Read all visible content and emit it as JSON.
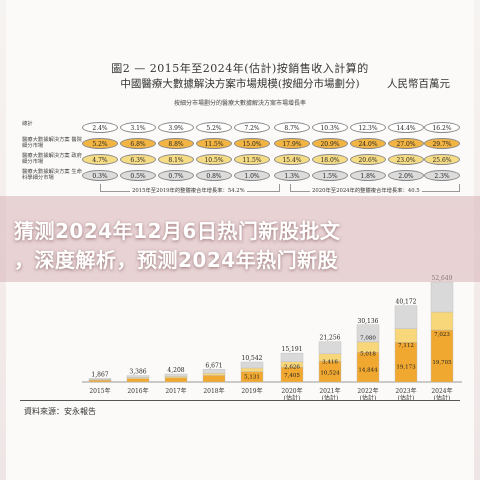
{
  "figure": {
    "title": "圖2 — 2015年至2024年(估計)按銷售收入計算的",
    "subtitle": "中國醫療大數據解決方案市場規模(按細分市場劃分)",
    "unit": "人民幣百萬元",
    "growth_header": "按細分市場劃分的醫療大數據解決方案市場增長率",
    "source": "資料來源：安永報告"
  },
  "growth_table": {
    "rows": [
      {
        "label": "總計",
        "values": [
          "2.4%",
          "3.1%",
          "3.9%",
          "5.2%",
          "7.2%",
          "8.7%",
          "10.3%",
          "12.3%",
          "14.4%",
          "16.2%"
        ]
      },
      {
        "label": "醫療大數據解決方案 醫院細分市場",
        "values": [
          "5.2%",
          "6.8%",
          "8.8%",
          "11.5%",
          "15.0%",
          "17.9%",
          "20.9%",
          "24.0%",
          "27.0%",
          "29.7%"
        ]
      },
      {
        "label": "醫療大數據解決方案 政府細分市場",
        "values": [
          "4.7%",
          "6.3%",
          "8.1%",
          "10.5%",
          "11.5%",
          "15.4%",
          "18.0%",
          "20.6%",
          "23.0%",
          "25.6%"
        ]
      },
      {
        "label": "醫療大數據解決方案 生命科學細分市場",
        "values": [
          "0.3%",
          "0.5%",
          "0.7%",
          "0.8%",
          "1.0%",
          "1.3%",
          "1.5%",
          "1.8%",
          "2.0%",
          "2.3%"
        ]
      }
    ],
    "bracket_left": "2015年至2019年的整體複合年增長率：54.2%",
    "bracket_right": "2020年至2024年的整體複合年增長率：40.5"
  },
  "headline": {
    "line1": "猜测2024年12月6日热门新股批文",
    "line2": "，深度解析，预测2024年热门新股"
  },
  "chart_data": {
    "type": "bar",
    "stacked": true,
    "categories": [
      "2015年",
      "2016年",
      "2017年",
      "2018年",
      "2019年",
      "2020年\n(估計)",
      "2021年\n(估計)",
      "2022年\n(估計)",
      "2023年\n(估計)",
      "2024年\n(估計)"
    ],
    "totals": [
      "1,867",
      "3,386",
      "4,208",
      "6,671",
      "10,542",
      "15,191",
      "21,256",
      "30,136",
      "40,172",
      "52,649"
    ],
    "segments_visible": {
      "2019": [
        "5,131"
      ],
      "2020": [
        "7,405",
        "2,626"
      ],
      "2021": [
        "10,524",
        "3,416"
      ],
      "2022": [
        "14,844",
        "5,018",
        "7,080"
      ],
      "2023": [
        "19,173",
        "7,112"
      ],
      "2024": [
        "19,705",
        "7,023"
      ]
    },
    "totals_num": [
      1867,
      3386,
      4208,
      6671,
      10542,
      15191,
      21256,
      30136,
      40172,
      52649
    ],
    "colors": {
      "hospital": "#f0a830",
      "government": "#f7d77a",
      "life_science": "#d9d9d9",
      "total_outline": "#c9c9c9"
    }
  }
}
